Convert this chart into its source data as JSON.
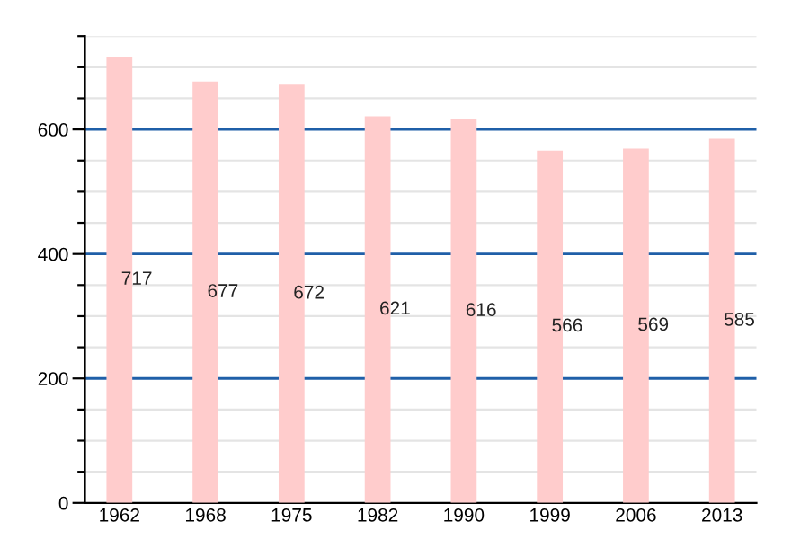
{
  "chart_data": {
    "type": "bar",
    "categories": [
      "1962",
      "1968",
      "1975",
      "1982",
      "1990",
      "1999",
      "2006",
      "2013"
    ],
    "values": [
      717,
      677,
      672,
      621,
      616,
      566,
      569,
      585
    ],
    "color": "#ffcccc",
    "ylim": [
      0,
      750
    ],
    "yticks": [
      0,
      {
        "value": 50,
        "label": null
      },
      {
        "value": 100,
        "label": null
      },
      {
        "value": 150,
        "label": null
      },
      200,
      {
        "value": 250,
        "label": null
      },
      {
        "value": 300,
        "label": null
      },
      {
        "value": 350,
        "label": null
      },
      400,
      {
        "value": 450,
        "label": null
      },
      {
        "value": 500,
        "label": null
      },
      {
        "value": 550,
        "label": null
      },
      600,
      {
        "value": 650,
        "label": null
      },
      {
        "value": 700,
        "label": null
      },
      {
        "value": 750,
        "label": null
      }
    ],
    "grid": "y",
    "data_labels": true
  }
}
